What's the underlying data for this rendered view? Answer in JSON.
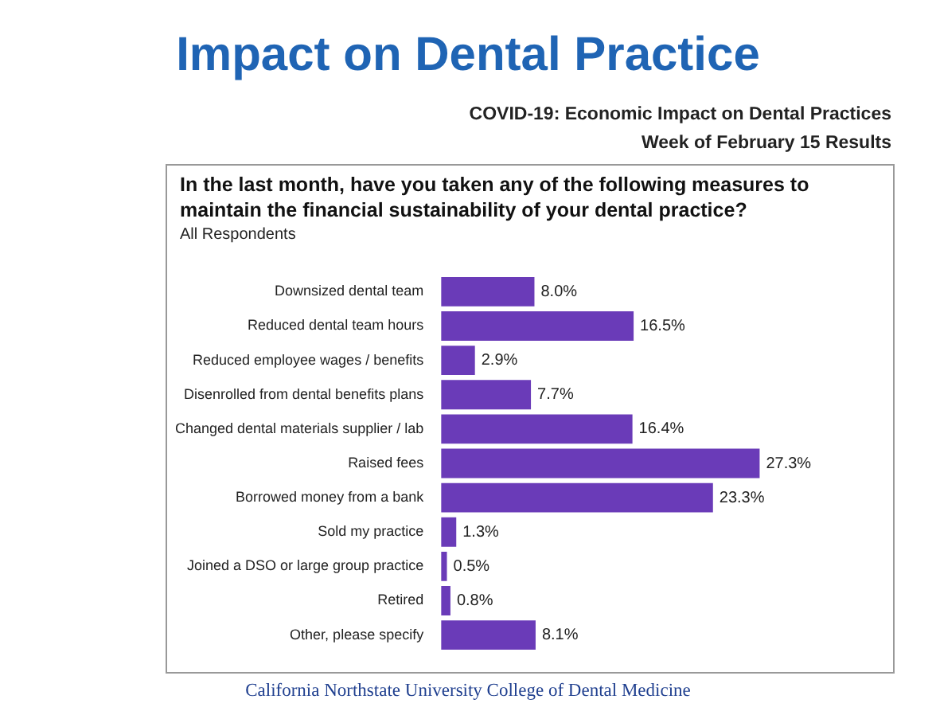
{
  "chart_data": {
    "type": "bar",
    "orientation": "horizontal",
    "title": "Impact on Dental Practice",
    "subtitle": "COVID-19: Economic Impact on Dental Practices",
    "annotations": [
      "Week of February 15 Results",
      "In the last month, have you taken any of the following measures to maintain the financial sustainability of your dental practice?",
      "All Respondents",
      "California Northstate University College of Dental Medicine"
    ],
    "categories": [
      "Downsized dental team",
      "Reduced dental team hours",
      "Reduced employee wages / benefits",
      "Disenrolled from dental benefits plans",
      "Changed dental materials supplier / lab",
      "Raised fees",
      "Borrowed money from a bank",
      "Sold my practice",
      "Joined a DSO or large group practice",
      "Retired",
      "Other, please specify"
    ],
    "values": [
      8.0,
      16.5,
      2.9,
      7.7,
      16.4,
      27.3,
      23.3,
      1.3,
      0.5,
      0.8,
      8.1
    ],
    "value_labels": [
      "8.0%",
      "16.5%",
      "2.9%",
      "7.7%",
      "16.4%",
      "27.3%",
      "23.3%",
      "1.3%",
      "0.5%",
      "0.8%",
      "8.1%"
    ],
    "color": "#6a3bb8"
  }
}
